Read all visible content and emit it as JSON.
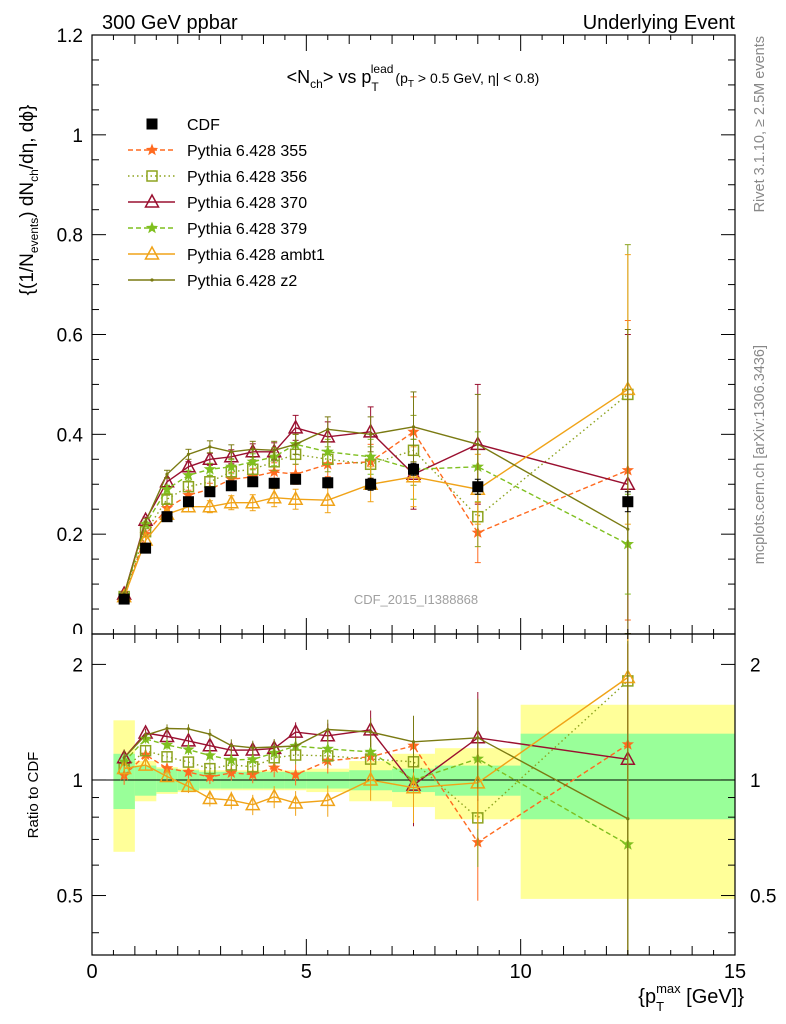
{
  "header": {
    "left": "300 GeV ppbar",
    "right": "Underlying Event",
    "side_top": "Rivet 3.1.10, ≥ 2.5M events",
    "side_bottom": "mcplots.cern.ch [arXiv:1306.3436]",
    "watermark": "CDF_2015_I1388868"
  },
  "title": {
    "main": "<N",
    "main_sub": "ch",
    "vs": "> vs p",
    "vs_sup": "lead",
    "vs_sub": "T",
    "cut1": "(p",
    "cut1_sub": "T",
    "cut2": " > 0.5 GeV, ",
    "cut3": "η| < 0.8)"
  },
  "ylabel_top": {
    "a": "{(1/N",
    "a_sub": "events",
    "b": ") dN",
    "b_sub": "ch",
    "c": "/dη, dϕ}"
  },
  "ylabel_bottom": "Ratio to CDF",
  "xlabel": {
    "a": "{p",
    "a_sup": "max",
    "a_sub": "T",
    "b": " [GeV]}"
  },
  "chart_data": [
    {
      "type": "line",
      "panel": "main",
      "xlim": [
        0,
        15
      ],
      "ylim": [
        0,
        1.2
      ],
      "yticks": [
        0,
        0.2,
        0.4,
        0.6,
        0.8,
        1.0,
        1.2
      ],
      "ytick_labels": [
        "0",
        "0.2",
        "0.4",
        "0.6",
        "0.8",
        "1",
        "1.2"
      ],
      "legend_position": "top-left",
      "x": [
        0.75,
        1.25,
        1.75,
        2.25,
        2.75,
        3.25,
        3.75,
        4.25,
        4.75,
        5.5,
        6.5,
        7.5,
        9.0,
        12.5
      ],
      "series": [
        {
          "name": "CDF",
          "color": "#000000",
          "marker": "filled-square",
          "line": "none",
          "values": [
            0.07,
            0.172,
            0.235,
            0.265,
            0.285,
            0.297,
            0.305,
            0.302,
            0.31,
            0.303,
            0.3,
            0.33,
            0.295,
            0.265
          ],
          "errors": [
            0.003,
            0.005,
            0.007,
            0.007,
            0.008,
            0.008,
            0.008,
            0.008,
            0.009,
            0.01,
            0.012,
            0.012,
            0.015,
            0.02
          ]
        },
        {
          "name": "Pythia 6.428 355",
          "color": "#ff6a1f",
          "marker": "star",
          "line": "dashed",
          "values": [
            0.072,
            0.2,
            0.252,
            0.278,
            0.29,
            0.31,
            0.315,
            0.325,
            0.32,
            0.34,
            0.345,
            0.405,
            0.203,
            0.328
          ],
          "errors": [
            0.004,
            0.006,
            0.008,
            0.01,
            0.012,
            0.014,
            0.016,
            0.018,
            0.02,
            0.025,
            0.035,
            0.07,
            0.06,
            0.3
          ]
        },
        {
          "name": "Pythia 6.428 356",
          "color": "#8da31f",
          "marker": "open-square",
          "line": "dotted",
          "values": [
            0.075,
            0.205,
            0.27,
            0.295,
            0.305,
            0.325,
            0.33,
            0.345,
            0.36,
            0.35,
            0.34,
            0.368,
            0.235,
            0.48
          ],
          "errors": [
            0.004,
            0.006,
            0.008,
            0.01,
            0.012,
            0.014,
            0.016,
            0.018,
            0.02,
            0.025,
            0.035,
            0.07,
            0.06,
            0.3
          ]
        },
        {
          "name": "Pythia 6.428 370",
          "color": "#9a1030",
          "marker": "open-triangle",
          "line": "solid",
          "values": [
            0.08,
            0.228,
            0.305,
            0.335,
            0.35,
            0.355,
            0.365,
            0.365,
            0.413,
            0.395,
            0.405,
            0.32,
            0.38,
            0.3
          ],
          "errors": [
            0.004,
            0.006,
            0.008,
            0.01,
            0.012,
            0.014,
            0.016,
            0.018,
            0.025,
            0.03,
            0.05,
            0.07,
            0.12,
            0.3
          ]
        },
        {
          "name": "Pythia 6.428 379",
          "color": "#7fbf1f",
          "marker": "star",
          "line": "dashed",
          "values": [
            0.078,
            0.22,
            0.29,
            0.318,
            0.33,
            0.335,
            0.345,
            0.355,
            0.38,
            0.365,
            0.355,
            0.33,
            0.335,
            0.18
          ],
          "errors": [
            0.004,
            0.006,
            0.008,
            0.01,
            0.012,
            0.014,
            0.016,
            0.018,
            0.02,
            0.025,
            0.035,
            0.06,
            0.07,
            0.1
          ]
        },
        {
          "name": "Pythia 6.428 ambt1",
          "color": "#f0a318",
          "marker": "open-triangle",
          "line": "solid",
          "values": [
            0.075,
            0.188,
            0.24,
            0.255,
            0.255,
            0.263,
            0.263,
            0.273,
            0.27,
            0.268,
            0.3,
            0.315,
            0.29,
            0.49
          ],
          "errors": [
            0.004,
            0.006,
            0.008,
            0.01,
            0.012,
            0.014,
            0.016,
            0.018,
            0.02,
            0.025,
            0.035,
            0.06,
            0.07,
            0.27
          ]
        },
        {
          "name": "Pythia 6.428 z2",
          "color": "#7a7a12",
          "marker": "dot",
          "line": "solid",
          "values": [
            0.08,
            0.225,
            0.32,
            0.36,
            0.375,
            0.365,
            0.37,
            0.368,
            0.38,
            0.41,
            0.4,
            0.415,
            0.38,
            0.21
          ],
          "errors": [
            0.004,
            0.006,
            0.008,
            0.01,
            0.012,
            0.014,
            0.016,
            0.018,
            0.02,
            0.025,
            0.035,
            0.07,
            0.1,
            0.4
          ]
        }
      ]
    },
    {
      "type": "line",
      "panel": "ratio",
      "xlim": [
        0,
        15
      ],
      "ylim": [
        0.35,
        2.4
      ],
      "scale": "log",
      "xticks": [
        0,
        5,
        10,
        15
      ],
      "yticks": [
        0.5,
        1,
        2
      ],
      "ytick_labels": [
        "0.5",
        "1",
        "2"
      ],
      "band_inner": [
        {
          "x0": 0.5,
          "x1": 1.0,
          "lo": 0.84,
          "hi": 1.17
        },
        {
          "x0": 1.0,
          "x1": 1.5,
          "lo": 0.91,
          "hi": 1.09
        },
        {
          "x0": 1.5,
          "x1": 2.0,
          "lo": 0.93,
          "hi": 1.07
        },
        {
          "x0": 2.0,
          "x1": 2.5,
          "lo": 0.94,
          "hi": 1.06
        },
        {
          "x0": 2.5,
          "x1": 3.0,
          "lo": 0.95,
          "hi": 1.05
        },
        {
          "x0": 3.0,
          "x1": 3.5,
          "lo": 0.95,
          "hi": 1.05
        },
        {
          "x0": 3.5,
          "x1": 4.0,
          "lo": 0.95,
          "hi": 1.05
        },
        {
          "x0": 4.0,
          "x1": 4.5,
          "lo": 0.95,
          "hi": 1.05
        },
        {
          "x0": 4.5,
          "x1": 5.0,
          "lo": 0.95,
          "hi": 1.05
        },
        {
          "x0": 5.0,
          "x1": 6.0,
          "lo": 0.95,
          "hi": 1.05
        },
        {
          "x0": 6.0,
          "x1": 7.0,
          "lo": 0.94,
          "hi": 1.06
        },
        {
          "x0": 7.0,
          "x1": 8.0,
          "lo": 0.93,
          "hi": 1.07
        },
        {
          "x0": 8.0,
          "x1": 10.0,
          "lo": 0.91,
          "hi": 1.09
        },
        {
          "x0": 10.0,
          "x1": 15.0,
          "lo": 0.79,
          "hi": 1.32
        }
      ],
      "band_outer": [
        {
          "x0": 0.5,
          "x1": 1.0,
          "lo": 0.65,
          "hi": 1.43
        },
        {
          "x0": 1.0,
          "x1": 1.5,
          "lo": 0.88,
          "hi": 1.12
        },
        {
          "x0": 1.5,
          "x1": 2.0,
          "lo": 0.92,
          "hi": 1.08
        },
        {
          "x0": 2.0,
          "x1": 2.5,
          "lo": 0.93,
          "hi": 1.07
        },
        {
          "x0": 2.5,
          "x1": 3.0,
          "lo": 0.94,
          "hi": 1.06
        },
        {
          "x0": 3.0,
          "x1": 3.5,
          "lo": 0.94,
          "hi": 1.06
        },
        {
          "x0": 3.5,
          "x1": 4.0,
          "lo": 0.94,
          "hi": 1.06
        },
        {
          "x0": 4.0,
          "x1": 4.5,
          "lo": 0.94,
          "hi": 1.06
        },
        {
          "x0": 4.5,
          "x1": 5.0,
          "lo": 0.94,
          "hi": 1.06
        },
        {
          "x0": 5.0,
          "x1": 6.0,
          "lo": 0.93,
          "hi": 1.07
        },
        {
          "x0": 6.0,
          "x1": 7.0,
          "lo": 0.88,
          "hi": 1.12
        },
        {
          "x0": 7.0,
          "x1": 8.0,
          "lo": 0.85,
          "hi": 1.17
        },
        {
          "x0": 8.0,
          "x1": 10.0,
          "lo": 0.79,
          "hi": 1.21
        },
        {
          "x0": 10.0,
          "x1": 15.0,
          "lo": 0.49,
          "hi": 1.57
        }
      ],
      "band_colors": {
        "inner": "#99ff99",
        "outer": "#ffff99"
      }
    }
  ]
}
